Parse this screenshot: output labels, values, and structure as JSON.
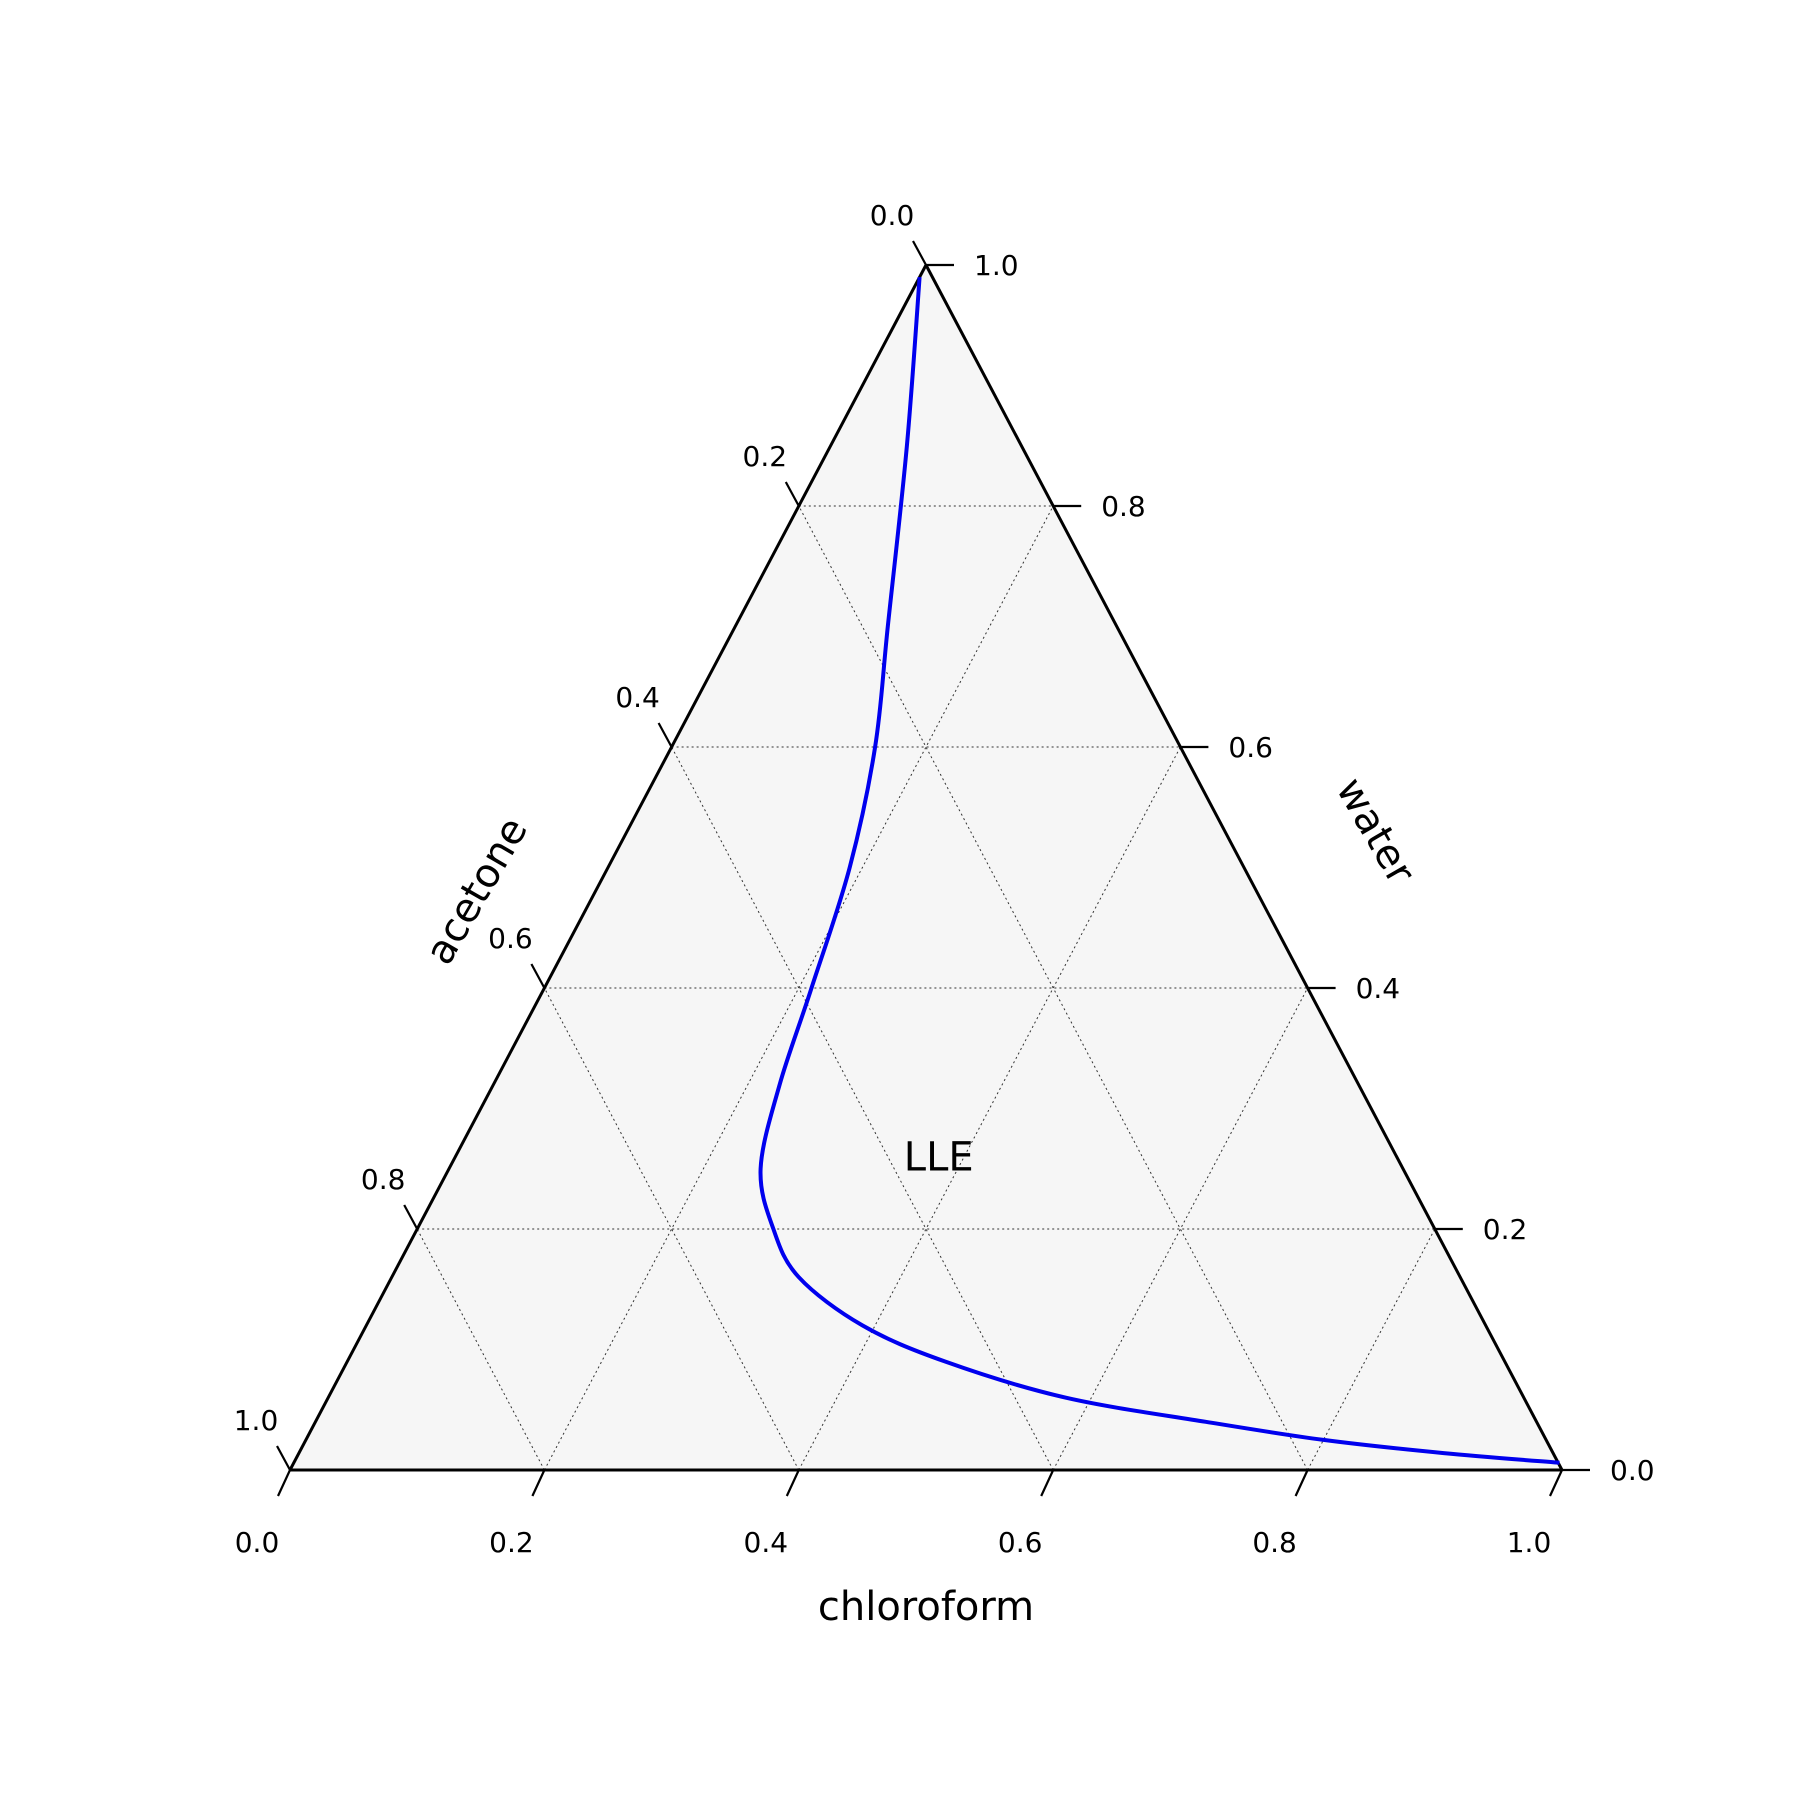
{
  "chart_data": {
    "type": "ternary",
    "axes": {
      "chloroform": {
        "label": "chloroform",
        "ticks": [
          "0.0",
          "0.2",
          "0.4",
          "0.6",
          "0.8",
          "1.0"
        ]
      },
      "acetone": {
        "label": "acetone",
        "ticks": [
          "0.0",
          "0.2",
          "0.4",
          "0.6",
          "0.8",
          "1.0"
        ]
      },
      "water": {
        "label": "water",
        "ticks": [
          "0.0",
          "0.2",
          "0.4",
          "0.6",
          "0.8",
          "1.0"
        ]
      }
    },
    "range": [
      0,
      1
    ],
    "grid": true,
    "grid_step": 0.2,
    "region_label": {
      "text": "LLE",
      "chloroform": 0.38,
      "acetone": 0.36,
      "water": 0.26
    },
    "series": [
      {
        "color": "#0000ee",
        "points": [
          {
            "chloroform": 0.0,
            "water": 0.99
          },
          {
            "chloroform": 0.06,
            "water": 0.85
          },
          {
            "chloroform": 0.12,
            "water": 0.7
          },
          {
            "chloroform": 0.16,
            "water": 0.6
          },
          {
            "chloroform": 0.19,
            "water": 0.5
          },
          {
            "chloroform": 0.21,
            "water": 0.4
          },
          {
            "chloroform": 0.225,
            "water": 0.32
          },
          {
            "chloroform": 0.245,
            "water": 0.25
          },
          {
            "chloroform": 0.28,
            "water": 0.2
          },
          {
            "chloroform": 0.32,
            "water": 0.16
          },
          {
            "chloroform": 0.39,
            "water": 0.12
          },
          {
            "chloroform": 0.47,
            "water": 0.09
          },
          {
            "chloroform": 0.58,
            "water": 0.06
          },
          {
            "chloroform": 0.7,
            "water": 0.04
          },
          {
            "chloroform": 0.8,
            "water": 0.025
          },
          {
            "chloroform": 0.9,
            "water": 0.014
          },
          {
            "chloroform": 0.995,
            "water": 0.006
          }
        ]
      }
    ]
  }
}
